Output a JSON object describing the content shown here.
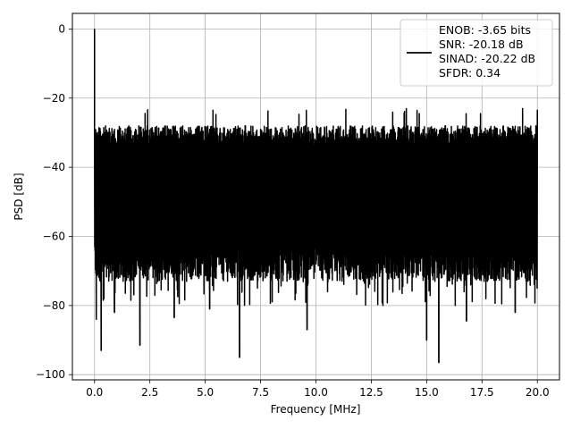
{
  "chart_data": {
    "type": "line",
    "xlabel": "Frequency [MHz]",
    "ylabel": "PSD [dB]",
    "xlim": [
      -1.0,
      21.0
    ],
    "ylim": [
      -101.5,
      4.5
    ],
    "xticks": [
      0.0,
      2.5,
      5.0,
      7.5,
      10.0,
      12.5,
      15.0,
      17.5,
      20.0
    ],
    "xtick_labels": [
      "0.0",
      "2.5",
      "5.0",
      "7.5",
      "10.0",
      "12.5",
      "15.0",
      "17.5",
      "20.0"
    ],
    "yticks": [
      0,
      -20,
      -40,
      -60,
      -80,
      -100
    ],
    "ytick_labels": [
      "0",
      "−20",
      "−40",
      "−60",
      "−80",
      "−100"
    ],
    "grid": true,
    "legend_placement": "upper-right",
    "legend_lines": [
      "ENOB: -3.65 bits",
      "SNR: -20.18 dB",
      "SINAD: -20.22 dB",
      "SFDR: 0.34"
    ],
    "series": [
      {
        "color": "#000000",
        "x_range": [
          0.0,
          20.0
        ],
        "noise_band": {
          "upper_typical": -28,
          "lower_typical": -68,
          "upper_max": -25,
          "lower_min": -80
        },
        "spikes": [
          {
            "x": 0.0,
            "y": 0
          },
          {
            "x": 0.08,
            "y": -84
          },
          {
            "x": 0.3,
            "y": -93
          },
          {
            "x": 0.9,
            "y": -82
          },
          {
            "x": 2.05,
            "y": -91.5
          },
          {
            "x": 3.6,
            "y": -83.5
          },
          {
            "x": 5.2,
            "y": -81
          },
          {
            "x": 6.55,
            "y": -95
          },
          {
            "x": 9.6,
            "y": -87
          },
          {
            "x": 15.0,
            "y": -90
          },
          {
            "x": 15.55,
            "y": -96.5
          },
          {
            "x": 16.8,
            "y": -84.5
          },
          {
            "x": 19.0,
            "y": -82
          },
          {
            "x": 20.0,
            "y": -23.5
          }
        ]
      }
    ]
  }
}
